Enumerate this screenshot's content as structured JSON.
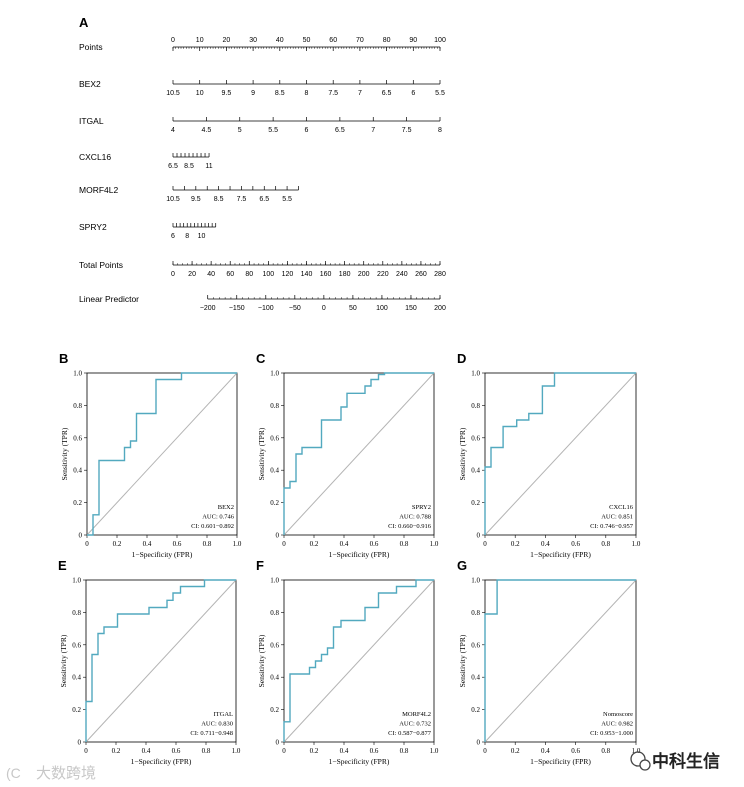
{
  "figure_labels": {
    "A": "A"
  },
  "watermarks": {
    "left": "大数跨境",
    "right": "中科生信"
  },
  "chart_data": [
    {
      "type": "nomogram",
      "panel": "A",
      "scales": [
        {
          "name": "Points",
          "ticks": [
            0,
            10,
            20,
            30,
            40,
            50,
            60,
            70,
            80,
            90,
            100
          ],
          "tick_labels": [
            "0",
            "10",
            "20",
            "30",
            "40",
            "50",
            "60",
            "70",
            "80",
            "90",
            "100"
          ],
          "label_side": "above",
          "minor_step": 1
        },
        {
          "name": "BEX2",
          "ticks": [
            10.5,
            10,
            9.5,
            9,
            8.5,
            8,
            7.5,
            7,
            6.5,
            6,
            5.5
          ],
          "tick_labels": [
            "10.5",
            "10",
            "9.5",
            "9",
            "8.5",
            "8",
            "7.5",
            "7",
            "6.5",
            "6",
            "5.5"
          ],
          "label_side": "below",
          "point_range": [
            0,
            100
          ]
        },
        {
          "name": "ITGAL",
          "ticks": [
            4,
            4.5,
            5,
            5.5,
            6,
            6.5,
            7,
            7.5,
            8
          ],
          "tick_labels": [
            "4",
            "4.5",
            "5",
            "5.5",
            "6",
            "6.5",
            "7",
            "7.5",
            "8"
          ],
          "label_side": "below",
          "point_range": [
            0,
            100
          ]
        },
        {
          "name": "CXCL16",
          "ticks": [
            6.5,
            7,
            7.5,
            8,
            8.5,
            9,
            9.5,
            10,
            10.5,
            11
          ],
          "tick_labels": [
            "6.5",
            "8.5",
            "11"
          ],
          "tick_label_values": [
            6.5,
            8.5,
            11
          ],
          "label_side": "below",
          "point_range": [
            0,
            13.5
          ]
        },
        {
          "name": "MORF4L2",
          "ticks": [
            10.5,
            10,
            9.5,
            9,
            8.5,
            8,
            7.5,
            7,
            6.5,
            6,
            5.5,
            5
          ],
          "tick_labels": [
            "10.5",
            "9.5",
            "8.5",
            "7.5",
            "6.5",
            "5.5"
          ],
          "tick_label_values": [
            10.5,
            9.5,
            8.5,
            7.5,
            6.5,
            5.5
          ],
          "label_side": "below",
          "point_range": [
            0,
            47
          ]
        },
        {
          "name": "SPRY2",
          "ticks": [
            6,
            6.5,
            7,
            7.5,
            8,
            8.5,
            9,
            9.5,
            10,
            10.5,
            11,
            11.5,
            12
          ],
          "tick_labels": [
            "6",
            "8",
            "10"
          ],
          "tick_label_values": [
            6,
            8,
            10
          ],
          "label_side": "below",
          "point_range": [
            0,
            16
          ]
        },
        {
          "name": "Total Points",
          "ticks": [
            0,
            20,
            40,
            60,
            80,
            100,
            120,
            140,
            160,
            180,
            200,
            220,
            240,
            260,
            280
          ],
          "tick_labels": [
            "0",
            "20",
            "40",
            "60",
            "80",
            "100",
            "120",
            "140",
            "160",
            "180",
            "200",
            "220",
            "240",
            "260",
            "280"
          ],
          "label_side": "below",
          "point_range": [
            0,
            100
          ],
          "minor_step": 5
        },
        {
          "name": "Linear Predictor",
          "ticks": [
            -200,
            -150,
            -100,
            -50,
            0,
            50,
            100,
            150,
            200
          ],
          "tick_labels": [
            "−200",
            "−150",
            "−100",
            "−50",
            "0",
            "50",
            "100",
            "150",
            "200"
          ],
          "label_side": "below",
          "point_range": [
            13,
            100
          ],
          "minor_step": 10
        }
      ]
    },
    {
      "type": "line",
      "panel": "B",
      "name": "BEX2",
      "auc": "AUC: 0.746",
      "ci": "CI: 0.601−0.892",
      "xlabel": "1−Specificity (FPR)",
      "ylabel": "Sensitivity (TPR)",
      "xlim": [
        0,
        1
      ],
      "ylim": [
        0,
        1
      ],
      "x": [
        0,
        0.04,
        0.04,
        0.08,
        0.08,
        0.25,
        0.25,
        0.29,
        0.29,
        0.33,
        0.33,
        0.46,
        0.46,
        0.63,
        0.63,
        1
      ],
      "y": [
        0,
        0,
        0.125,
        0.125,
        0.46,
        0.46,
        0.54,
        0.54,
        0.58,
        0.58,
        0.75,
        0.75,
        0.96,
        0.96,
        1,
        1
      ]
    },
    {
      "type": "line",
      "panel": "C",
      "name": "SPRY2",
      "auc": "AUC: 0.788",
      "ci": "CI: 0.660−0.916",
      "xlabel": "1−Specificity (FPR)",
      "ylabel": "Sensitivity (TPR)",
      "xlim": [
        0,
        1
      ],
      "ylim": [
        0,
        1
      ],
      "x": [
        0,
        0,
        0.04,
        0.04,
        0.08,
        0.08,
        0.12,
        0.12,
        0.25,
        0.25,
        0.38,
        0.38,
        0.42,
        0.42,
        0.54,
        0.54,
        0.58,
        0.58,
        0.63,
        0.63,
        0.67,
        0.67,
        1
      ],
      "y": [
        0,
        0.29,
        0.29,
        0.33,
        0.33,
        0.5,
        0.5,
        0.54,
        0.54,
        0.71,
        0.71,
        0.79,
        0.79,
        0.875,
        0.875,
        0.92,
        0.92,
        0.96,
        0.96,
        0.99,
        0.99,
        1,
        1
      ]
    },
    {
      "type": "line",
      "panel": "D",
      "name": "CXCL16",
      "auc": "AUC: 0.851",
      "ci": "CI: 0.746−0.957",
      "xlabel": "1−Specificity (FPR)",
      "ylabel": "Sensitivity (TPR)",
      "xlim": [
        0,
        1
      ],
      "ylim": [
        0,
        1
      ],
      "x": [
        0,
        0,
        0.04,
        0.04,
        0.12,
        0.12,
        0.21,
        0.21,
        0.29,
        0.29,
        0.38,
        0.38,
        0.46,
        0.46,
        0.63,
        0.63,
        1
      ],
      "y": [
        0,
        0.42,
        0.42,
        0.54,
        0.54,
        0.67,
        0.67,
        0.71,
        0.71,
        0.75,
        0.75,
        0.92,
        0.92,
        1,
        1,
        1,
        1
      ]
    },
    {
      "type": "line",
      "panel": "E",
      "name": "ITGAL",
      "auc": "AUC: 0.830",
      "ci": "CI: 0.711−0.948",
      "xlabel": "1−Specificity (FPR)",
      "ylabel": "Sensitivity (TPR)",
      "xlim": [
        0,
        1
      ],
      "ylim": [
        0,
        1
      ],
      "x": [
        0,
        0,
        0.04,
        0.04,
        0.08,
        0.08,
        0.12,
        0.12,
        0.21,
        0.21,
        0.42,
        0.42,
        0.54,
        0.54,
        0.58,
        0.58,
        0.63,
        0.63,
        0.79,
        0.79,
        1
      ],
      "y": [
        0,
        0.25,
        0.25,
        0.54,
        0.54,
        0.67,
        0.67,
        0.71,
        0.71,
        0.79,
        0.79,
        0.83,
        0.83,
        0.875,
        0.875,
        0.92,
        0.92,
        0.96,
        0.96,
        1,
        1
      ]
    },
    {
      "type": "line",
      "panel": "F",
      "name": "MORF4L2",
      "auc": "AUC: 0.732",
      "ci": "CI: 0.587−0.877",
      "xlabel": "1−Specificity (FPR)",
      "ylabel": "Sensitivity (TPR)",
      "xlim": [
        0,
        1
      ],
      "ylim": [
        0,
        1
      ],
      "x": [
        0,
        0,
        0.04,
        0.04,
        0.17,
        0.17,
        0.21,
        0.21,
        0.25,
        0.25,
        0.29,
        0.29,
        0.33,
        0.33,
        0.38,
        0.38,
        0.54,
        0.54,
        0.63,
        0.63,
        0.75,
        0.75,
        0.83,
        0.83,
        0.88,
        0.88,
        1
      ],
      "y": [
        0,
        0.125,
        0.125,
        0.42,
        0.42,
        0.46,
        0.46,
        0.5,
        0.5,
        0.54,
        0.54,
        0.58,
        0.58,
        0.71,
        0.71,
        0.75,
        0.75,
        0.83,
        0.83,
        0.92,
        0.92,
        0.96,
        0.96,
        0.96,
        0.96,
        1,
        1
      ]
    },
    {
      "type": "line",
      "panel": "G",
      "name": "Nomoscore",
      "auc": "AUC: 0.982",
      "ci": "CI: 0.953−1.000",
      "xlabel": "1−Specificity (FPR)",
      "ylabel": "Sensitivity (TPR)",
      "xlim": [
        0,
        1
      ],
      "ylim": [
        0,
        1
      ],
      "x": [
        0,
        0,
        0.08,
        0.08,
        1
      ],
      "y": [
        0,
        0.79,
        0.79,
        1,
        1
      ]
    }
  ],
  "roc_axes": {
    "ticks": [
      0,
      0.2,
      0.4,
      0.6,
      0.8,
      1.0
    ],
    "tick_labels": [
      "0",
      "0.2",
      "0.4",
      "0.6",
      "0.8",
      "1.0"
    ]
  },
  "colors": {
    "roc_line": "#52a9bf",
    "diagonal": "#b4b4b4",
    "axis": "#000000"
  }
}
